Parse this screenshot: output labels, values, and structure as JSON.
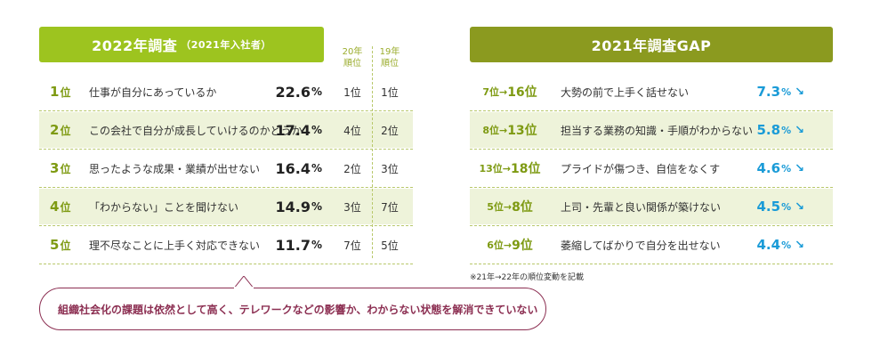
{
  "chart_data": [
    {
      "type": "table",
      "title": "2022年調査",
      "subtitle": "（2021年入社者）",
      "columns": [
        "",
        "",
        "",
        "20年順位",
        "19年順位"
      ],
      "col_20": "20年\n順位",
      "col_19": "19年\n順位",
      "rows": [
        {
          "rank": "1",
          "unit": "位",
          "label": "仕事が自分にあっているか",
          "value": 22.6,
          "value_text": "22.6",
          "pct": "%",
          "y20": "1位",
          "y19": "1位"
        },
        {
          "rank": "2",
          "unit": "位",
          "label": "この会社で自分が成長していけるのかどうか",
          "value": 17.4,
          "value_text": "17.4",
          "pct": "%",
          "y20": "4位",
          "y19": "2位"
        },
        {
          "rank": "3",
          "unit": "位",
          "label": "思ったような成果・業績が出せない",
          "value": 16.4,
          "value_text": "16.4",
          "pct": "%",
          "y20": "2位",
          "y19": "3位"
        },
        {
          "rank": "4",
          "unit": "位",
          "label": "「わからない」ことを聞けない",
          "value": 14.9,
          "value_text": "14.9",
          "pct": "%",
          "y20": "3位",
          "y19": "7位"
        },
        {
          "rank": "5",
          "unit": "位",
          "label": "理不尽なことに上手く対応できない",
          "value": 11.7,
          "value_text": "11.7",
          "pct": "%",
          "y20": "7位",
          "y19": "5位"
        }
      ]
    },
    {
      "type": "table",
      "title": "2021年調査GAP",
      "rows": [
        {
          "from": "7位",
          "arrow": "→",
          "to": "16位",
          "label": "大勢の前で上手く話せない",
          "value": 7.3,
          "value_text": "7.3",
          "pct": "%",
          "trend": "↘"
        },
        {
          "from": "8位",
          "arrow": "→",
          "to": "13位",
          "label": "担当する業務の知識・手順がわからない",
          "value": 5.8,
          "value_text": "5.8",
          "pct": "%",
          "trend": "↘"
        },
        {
          "from": "13位",
          "arrow": "→",
          "to": "18位",
          "label": "プライドが傷つき、自信をなくす",
          "value": 4.6,
          "value_text": "4.6",
          "pct": "%",
          "trend": "↘"
        },
        {
          "from": "5位",
          "arrow": "→",
          "to": "8位",
          "label": "上司・先輩と良い関係が築けない",
          "value": 4.5,
          "value_text": "4.5",
          "pct": "%",
          "trend": "↘"
        },
        {
          "from": "6位",
          "arrow": "→",
          "to": "9位",
          "label": "萎縮してばかりで自分を出せない",
          "value": 4.4,
          "value_text": "4.4",
          "pct": "%",
          "trend": "↘"
        }
      ],
      "note": "※21年→22年の順位変動を記載"
    }
  ],
  "callout": "組織社会化の課題は依然として高く、テレワークなどの影響か、わからない状態を解消できていない",
  "colors": {
    "left_header": "#9dc41f",
    "right_header": "#8b9a1f",
    "rank_green": "#7e9a12",
    "gap_blue": "#1a9bd7",
    "callout": "#8c2f52",
    "shade": "#eef3da"
  }
}
